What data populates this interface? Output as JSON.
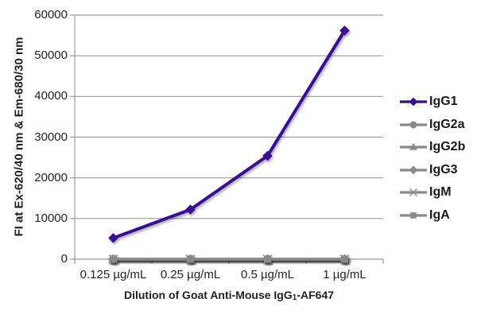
{
  "chart_data": {
    "type": "line",
    "title": "",
    "xlabel": {
      "prefix": "Dilution of Goat Anti-Mouse IgG",
      "sub": "1",
      "suffix": "-AF647",
      "full": "Dilution of Goat Anti-Mouse IgG1-AF647"
    },
    "ylabel": "FI at Ex-620/40 nm & Em-680/30 nm",
    "categories": [
      "0.125 µg/mL",
      "0.25 µg/mL",
      "0.5 µg/mL",
      "1 µg/mL"
    ],
    "yticks": [
      0,
      10000,
      20000,
      30000,
      40000,
      50000,
      60000
    ],
    "ylim": [
      0,
      60000
    ],
    "grid": true,
    "legend_position": "right",
    "series": [
      {
        "name": "IgG1",
        "marker": "diamond",
        "color": "#3A0B94",
        "values": [
          5200,
          12200,
          25400,
          56200
        ]
      },
      {
        "name": "IgG2a",
        "marker": "circle",
        "color": "#8A8A8A",
        "values": [
          0,
          0,
          0,
          0
        ]
      },
      {
        "name": "IgG2b",
        "marker": "triangle",
        "color": "#8A8A8A",
        "values": [
          0,
          0,
          0,
          0
        ]
      },
      {
        "name": "IgG3",
        "marker": "diamond",
        "color": "#8A8A8A",
        "values": [
          0,
          0,
          0,
          0
        ]
      },
      {
        "name": "IgM",
        "marker": "asterisk",
        "color": "#8A8A8A",
        "values": [
          0,
          0,
          0,
          0
        ]
      },
      {
        "name": "IgA",
        "marker": "square",
        "color": "#8A8A8A",
        "values": [
          0,
          0,
          0,
          0
        ]
      }
    ],
    "colors": {
      "background": "#FFFFFF",
      "grid": "#9C9C9C",
      "axis": "#9C9C9C",
      "zero_line": "#8A8A8A",
      "text": "#231F20"
    }
  }
}
